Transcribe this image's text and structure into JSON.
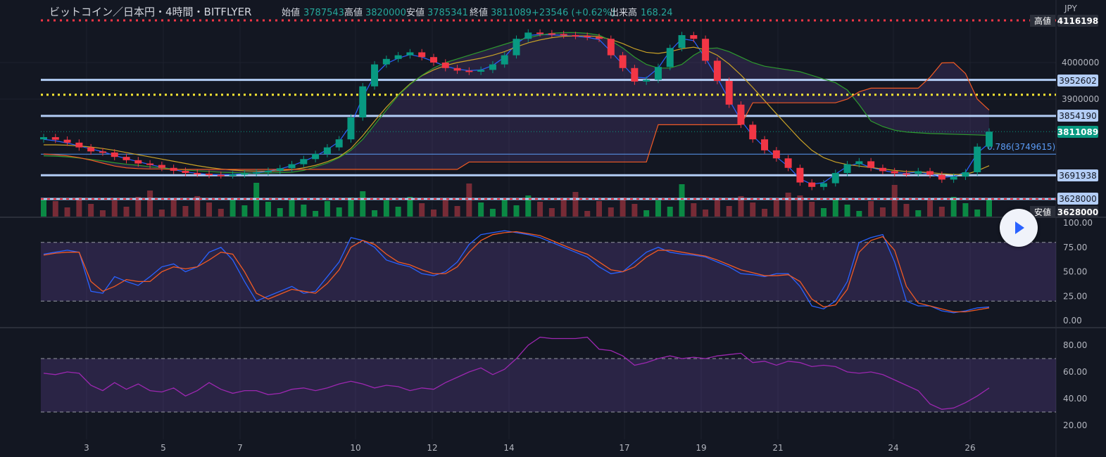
{
  "header": {
    "title": "ビットコイン／日本円・4時間・BITFLYER",
    "open_label": "始値",
    "open": "3787543",
    "high_label": "高値",
    "high": "3820000",
    "low_label": "安値",
    "low": "3785341",
    "close_label": "終値",
    "close": "3811089",
    "change": "+23546 (+0.62%)",
    "volume_label": "出来高",
    "volume": "168.24"
  },
  "price_axis": {
    "currency": "JPY",
    "ticks": [
      "4000000",
      "3900000"
    ],
    "labels": [
      {
        "text": "4116198",
        "prefix": "高値",
        "value": 4116198,
        "bg": "#2a2e39",
        "color": "#ffffff"
      },
      {
        "text": "3952602",
        "value": 3952602,
        "bg": "#b3cdf5",
        "color": "#131722"
      },
      {
        "text": "3854190",
        "value": 3854190,
        "bg": "#b3cdf5",
        "color": "#131722"
      },
      {
        "text": "3811089",
        "value": 3811089,
        "bg": "#089981",
        "color": "#ffffff"
      },
      {
        "text": "3691938",
        "value": 3691938,
        "bg": "#b3cdf5",
        "color": "#131722"
      },
      {
        "text": "3628000",
        "value": 3628000,
        "bg": "#b3cdf5",
        "color": "#131722"
      },
      {
        "text": "3628000",
        "prefix": "安値",
        "value": 3628000,
        "bg": "#2a2e39",
        "color": "#ffffff"
      }
    ],
    "fib_label": "0.786(3749615)"
  },
  "colors": {
    "up": "#089981",
    "down": "#f23645",
    "up_vol": "#0a9d4a",
    "down_vol": "#8a2f3a",
    "ema_fast": "#2962ff",
    "ema_slow": "#c9a227",
    "cloud_span_a": "#2e9b2e",
    "cloud_span_b": "#f05a24",
    "hline": "#b3cdf5",
    "dotted_yellow": "#f7e633",
    "dotted_red": "#f23645",
    "stoch_k": "#2962ff",
    "stoch_d": "#f05a24",
    "rsi": "#9c27b0",
    "band": "#7e57c2"
  },
  "chart_data": [
    {
      "type": "candlestick",
      "title": "ビットコイン／日本円・4時間・BITFLYER",
      "x_axis": [
        "3",
        "5",
        "7",
        "10",
        "12",
        "14",
        "17",
        "19",
        "21",
        "24",
        "26"
      ],
      "ylim": [
        3628000,
        4116198
      ],
      "grid": true,
      "series": [
        {
          "name": "close",
          "values": [
            3796000,
            3789000,
            3781000,
            3768000,
            3757000,
            3754000,
            3742000,
            3733000,
            3724000,
            3720000,
            3712000,
            3704000,
            3698000,
            3696000,
            3693000,
            3692000,
            3694000,
            3697000,
            3700000,
            3704000,
            3711000,
            3722000,
            3736000,
            3750000,
            3768000,
            3790000,
            3850000,
            3935000,
            3995000,
            4010000,
            4020000,
            4028000,
            4015000,
            4000000,
            3985000,
            3978000,
            3975000,
            3980000,
            3995000,
            4020000,
            4065000,
            4082000,
            4080000,
            4078000,
            4075000,
            4073000,
            4070000,
            4065000,
            4020000,
            3985000,
            3948000,
            3953000,
            3988000,
            4040000,
            4075000,
            4065000,
            4005000,
            3950000,
            3885000,
            3830000,
            3790000,
            3760000,
            3738000,
            3712000,
            3672000,
            3660000,
            3670000,
            3698000,
            3722000,
            3730000,
            3712000,
            3703000,
            3697000,
            3696000,
            3703000,
            3693000,
            3680000,
            3688000,
            3700000,
            3770000,
            3811089
          ]
        },
        {
          "name": "EMA fast",
          "values": [
            3790000,
            3786000,
            3780000,
            3772000,
            3764000,
            3756000,
            3746000,
            3737000,
            3729000,
            3721000,
            3714000,
            3707000,
            3701000,
            3697000,
            3694000,
            3693000,
            3694000,
            3696000,
            3699000,
            3703000,
            3709000,
            3718000,
            3730000,
            3744000,
            3762000,
            3784000,
            3830000,
            3905000,
            3965000,
            3997000,
            4012000,
            4022000,
            4015000,
            4003000,
            3990000,
            3982000,
            3978000,
            3980000,
            3992000,
            4015000,
            4052000,
            4074000,
            4077000,
            4076000,
            4074000,
            4072000,
            4069000,
            4063000,
            4030000,
            3995000,
            3960000,
            3958000,
            3985000,
            4032000,
            4065000,
            4060000,
            4012000,
            3958000,
            3898000,
            3842000,
            3800000,
            3768000,
            3742000,
            3716000,
            3682000,
            3667000,
            3672000,
            3695000,
            3716000,
            3725000,
            3713000,
            3705000,
            3699000,
            3697000,
            3701000,
            3695000,
            3685000,
            3689000,
            3700000,
            3752000,
            3780000
          ]
        },
        {
          "name": "EMA slow",
          "values": [
            3775000,
            3775000,
            3774000,
            3772000,
            3769000,
            3765000,
            3760000,
            3754000,
            3748000,
            3742000,
            3736000,
            3730000,
            3724000,
            3718000,
            3713000,
            3709000,
            3706000,
            3704000,
            3703000,
            3703000,
            3704000,
            3707000,
            3712000,
            3719000,
            3729000,
            3742000,
            3765000,
            3800000,
            3840000,
            3878000,
            3912000,
            3942000,
            3964000,
            3980000,
            3992000,
            4000000,
            4006000,
            4012000,
            4020000,
            4030000,
            4043000,
            4054000,
            4062000,
            4068000,
            4072000,
            4073000,
            4073000,
            4071000,
            4063000,
            4052000,
            4038000,
            4028000,
            4025000,
            4030000,
            4038000,
            4042000,
            4035000,
            4020000,
            3996000,
            3966000,
            3932000,
            3896000,
            3860000,
            3825000,
            3790000,
            3760000,
            3740000,
            3728000,
            3721000,
            3717000,
            3713000,
            3709000,
            3705000,
            3702000,
            3701000,
            3699000,
            3696000,
            3694000,
            3694000,
            3704000,
            3718000
          ]
        },
        {
          "name": "Span A",
          "values": [
            3745000,
            3744000,
            3742000,
            3739000,
            3735000,
            3731000,
            3726000,
            3722000,
            3719000,
            3715000,
            3712000,
            3709000,
            3706000,
            3704000,
            3702000,
            3700000,
            3699000,
            3698000,
            3698000,
            3698000,
            3699000,
            3700000,
            3705000,
            3715000,
            3725000,
            3740000,
            3760000,
            3790000,
            3830000,
            3870000,
            3910000,
            3940000,
            3965000,
            3985000,
            4000000,
            4010000,
            4020000,
            4030000,
            4040000,
            4050000,
            4060000,
            4068000,
            4075000,
            4080000,
            4082000,
            4082000,
            4080000,
            4075000,
            4060000,
            4040000,
            4015000,
            3995000,
            3985000,
            3985000,
            3995000,
            4020000,
            4038000,
            4040000,
            4030000,
            4015000,
            4000000,
            3990000,
            3985000,
            3980000,
            3975000,
            3965000,
            3955000,
            3945000,
            3925000,
            3885000,
            3840000,
            3825000,
            3815000,
            3810000,
            3808000,
            3806000,
            3805000,
            3804000,
            3803000,
            3802000,
            3801000
          ]
        },
        {
          "name": "Span B",
          "values": [
            3750000,
            3748000,
            3745000,
            3740000,
            3733000,
            3725000,
            3717000,
            3712000,
            3710000,
            3709000,
            3709000,
            3708000,
            3708000,
            3708000,
            3708000,
            3708000,
            3708000,
            3708000,
            3708000,
            3708000,
            3708000,
            3708000,
            3708000,
            3708000,
            3708000,
            3708000,
            3708000,
            3708000,
            3708000,
            3708000,
            3708000,
            3708000,
            3708000,
            3708000,
            3708000,
            3708000,
            3728000,
            3728000,
            3728000,
            3728000,
            3728000,
            3728000,
            3728000,
            3728000,
            3728000,
            3728000,
            3728000,
            3728000,
            3728000,
            3728000,
            3728000,
            3728000,
            3830000,
            3830000,
            3830000,
            3830000,
            3830000,
            3830000,
            3830000,
            3830000,
            3890000,
            3890000,
            3890000,
            3890000,
            3890000,
            3890000,
            3890000,
            3890000,
            3900000,
            3920000,
            3930000,
            3930000,
            3930000,
            3930000,
            3930000,
            3960000,
            3999000,
            4000000,
            3970000,
            3900000,
            3870000
          ]
        }
      ]
    },
    {
      "type": "line",
      "ylim": [
        0,
        100
      ],
      "ticks": [
        "100.00",
        "75.00",
        "50.00",
        "25.00",
        "0.00"
      ],
      "bands": [
        20,
        80
      ],
      "series": [
        {
          "name": "%K",
          "values": [
            68,
            70,
            72,
            70,
            30,
            28,
            45,
            40,
            36,
            45,
            55,
            58,
            50,
            55,
            70,
            75,
            62,
            40,
            20,
            25,
            30,
            35,
            28,
            30,
            45,
            60,
            85,
            82,
            75,
            62,
            58,
            55,
            48,
            46,
            50,
            60,
            78,
            88,
            90,
            92,
            90,
            88,
            85,
            80,
            75,
            70,
            65,
            55,
            48,
            50,
            60,
            70,
            75,
            70,
            68,
            67,
            65,
            60,
            55,
            48,
            47,
            45,
            48,
            48,
            35,
            15,
            12,
            20,
            40,
            80,
            85,
            88,
            60,
            20,
            15,
            15,
            10,
            8,
            10,
            13,
            14
          ]
        },
        {
          "name": "%D",
          "values": [
            67,
            69,
            70,
            70,
            40,
            30,
            35,
            42,
            40,
            40,
            50,
            55,
            53,
            55,
            62,
            70,
            68,
            50,
            28,
            22,
            27,
            32,
            30,
            28,
            38,
            52,
            75,
            82,
            78,
            68,
            60,
            57,
            52,
            48,
            48,
            55,
            70,
            82,
            88,
            90,
            91,
            89,
            87,
            82,
            77,
            72,
            68,
            60,
            52,
            50,
            55,
            65,
            72,
            72,
            70,
            68,
            66,
            62,
            57,
            52,
            49,
            46,
            46,
            47,
            40,
            22,
            14,
            16,
            32,
            70,
            82,
            86,
            72,
            35,
            18,
            15,
            12,
            9,
            9,
            11,
            13
          ]
        }
      ]
    },
    {
      "type": "line",
      "ylim": [
        10,
        90
      ],
      "ticks": [
        "80.00",
        "60.00",
        "40.00",
        "20.00"
      ],
      "bands": [
        30,
        70
      ],
      "series": [
        {
          "name": "RSI",
          "values": [
            59,
            58,
            60,
            59,
            50,
            46,
            52,
            47,
            51,
            46,
            45,
            48,
            42,
            46,
            52,
            47,
            44,
            46,
            46,
            43,
            44,
            47,
            48,
            46,
            48,
            51,
            53,
            51,
            48,
            50,
            49,
            46,
            48,
            47,
            52,
            56,
            60,
            63,
            58,
            62,
            70,
            80,
            86,
            85,
            85,
            85,
            86,
            77,
            76,
            72,
            65,
            67,
            70,
            72,
            70,
            71,
            70,
            72,
            73,
            74,
            67,
            68,
            65,
            68,
            67,
            64,
            65,
            64,
            60,
            59,
            60,
            58,
            54,
            50,
            46,
            36,
            32,
            33,
            37,
            42,
            48
          ]
        }
      ]
    }
  ]
}
